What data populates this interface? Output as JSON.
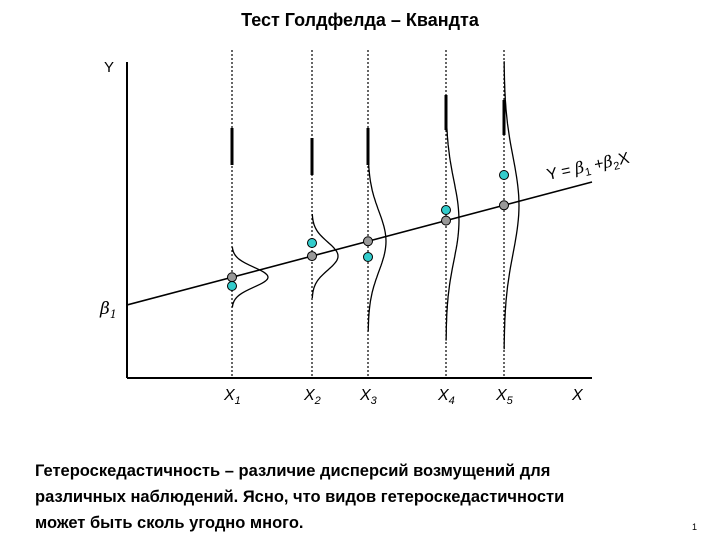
{
  "title": "Тест Голдфелда – Квандта",
  "axes": {
    "y_label": "Y",
    "x_label": "X",
    "intercept": {
      "symbol": "β",
      "sub": "1"
    }
  },
  "x_labels": [
    {
      "main": "X",
      "sub": "1"
    },
    {
      "main": "X",
      "sub": "2"
    },
    {
      "main": "X",
      "sub": "3"
    },
    {
      "main": "X",
      "sub": "4"
    },
    {
      "main": "X",
      "sub": "5"
    }
  ],
  "equation": {
    "lhs": "Y = ",
    "b1": "β",
    "b1_sub": "1",
    "plus": " +",
    "b2": "β",
    "b2_sub": "2",
    "x": "X"
  },
  "caption": [
    "Гетероскедастичность – различие дисперсий возмущений для",
    "различных наблюдений.  Ясно, что видов гетероскедастичности",
    "может быть сколь угодно много."
  ],
  "page_number": "1"
}
